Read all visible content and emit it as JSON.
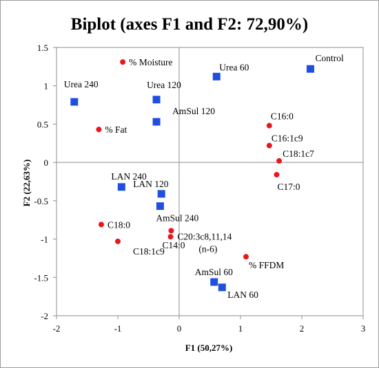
{
  "chart_data": {
    "type": "scatter",
    "title": "Biplot (axes F1 and F2: 72,90%)",
    "xlabel": "F1 (50,27%)",
    "ylabel": "F2 (22,63%)",
    "xlim": [
      -2,
      3
    ],
    "ylim": [
      -2,
      1.5
    ],
    "xticks": [
      -2,
      -1,
      0,
      1,
      2,
      3
    ],
    "yticks": [
      -2,
      -1.5,
      -1,
      -0.5,
      0,
      0.5,
      1,
      1.5
    ],
    "xtick_labels": [
      "-2",
      "-1",
      "0",
      "1",
      "2",
      "3"
    ],
    "ytick_labels": [
      "-2",
      "-1.5",
      "-1",
      "-0.5",
      "0",
      "0.5",
      "1",
      "1.5"
    ],
    "grid": false,
    "colors": {
      "observations": "#1f4fe0",
      "variables": "#e8171b"
    },
    "series": [
      {
        "kind": "observations",
        "marker": "square",
        "points": [
          {
            "label": "Control",
            "x": 2.14,
            "y": 1.22,
            "label_pos": "above-right"
          },
          {
            "label": "Urea 60",
            "x": 0.61,
            "y": 1.12,
            "label_pos": "above-right"
          },
          {
            "label": "Urea 120",
            "x": -0.37,
            "y": 0.82,
            "label_pos": "above-right-high"
          },
          {
            "label": "Urea 240",
            "x": -1.71,
            "y": 0.79,
            "label_pos": "above-left"
          },
          {
            "label": "AmSul 120",
            "x": -0.37,
            "y": 0.53,
            "label_pos": "above-right"
          },
          {
            "label": "LAN 240",
            "x": -0.94,
            "y": -0.32,
            "label_pos": "above"
          },
          {
            "label": "LAN 120",
            "x": -0.29,
            "y": -0.41,
            "label_pos": "above-left"
          },
          {
            "label": "AmSul 240",
            "x": -0.31,
            "y": -0.57,
            "label_pos": "below-right"
          },
          {
            "label": "AmSul 60",
            "x": 0.57,
            "y": -1.56,
            "label_pos": "above-left"
          },
          {
            "label": "LAN 60",
            "x": 0.7,
            "y": -1.63,
            "label_pos": "below-right"
          }
        ]
      },
      {
        "kind": "variables",
        "marker": "circle",
        "points": [
          {
            "label": "% Moisture",
            "x": -0.92,
            "y": 1.31,
            "label_pos": "right"
          },
          {
            "label": "% Fat",
            "x": -1.31,
            "y": 0.43,
            "label_pos": "right"
          },
          {
            "label": "C16:0",
            "x": 1.47,
            "y": 0.48,
            "label_pos": "above-right"
          },
          {
            "label": "C16:1c9",
            "x": 1.47,
            "y": 0.22,
            "label_pos": "above-right"
          },
          {
            "label": "C18:1c7",
            "x": 1.63,
            "y": 0.02,
            "label_pos": "above-right"
          },
          {
            "label": "C17:0",
            "x": 1.59,
            "y": -0.16,
            "label_pos": "below-right"
          },
          {
            "label": "C18:0",
            "x": -1.27,
            "y": -0.81,
            "label_pos": "right"
          },
          {
            "label": "C18:1c9",
            "x": -1.0,
            "y": -1.03,
            "label_pos": "below-right"
          },
          {
            "label": "C20:3c8,11,14",
            "x": -0.13,
            "y": -0.89,
            "label_pos": "above-right"
          },
          {
            "label": "(n-6)",
            "x": -0.13,
            "y": -0.89,
            "label_pos": "below-right-far"
          },
          {
            "label": "C14:0",
            "x": -0.14,
            "y": -0.97,
            "label_pos": "below"
          },
          {
            "label": "% FFDM",
            "x": 1.09,
            "y": -1.23,
            "label_pos": "below-right"
          }
        ]
      }
    ]
  }
}
